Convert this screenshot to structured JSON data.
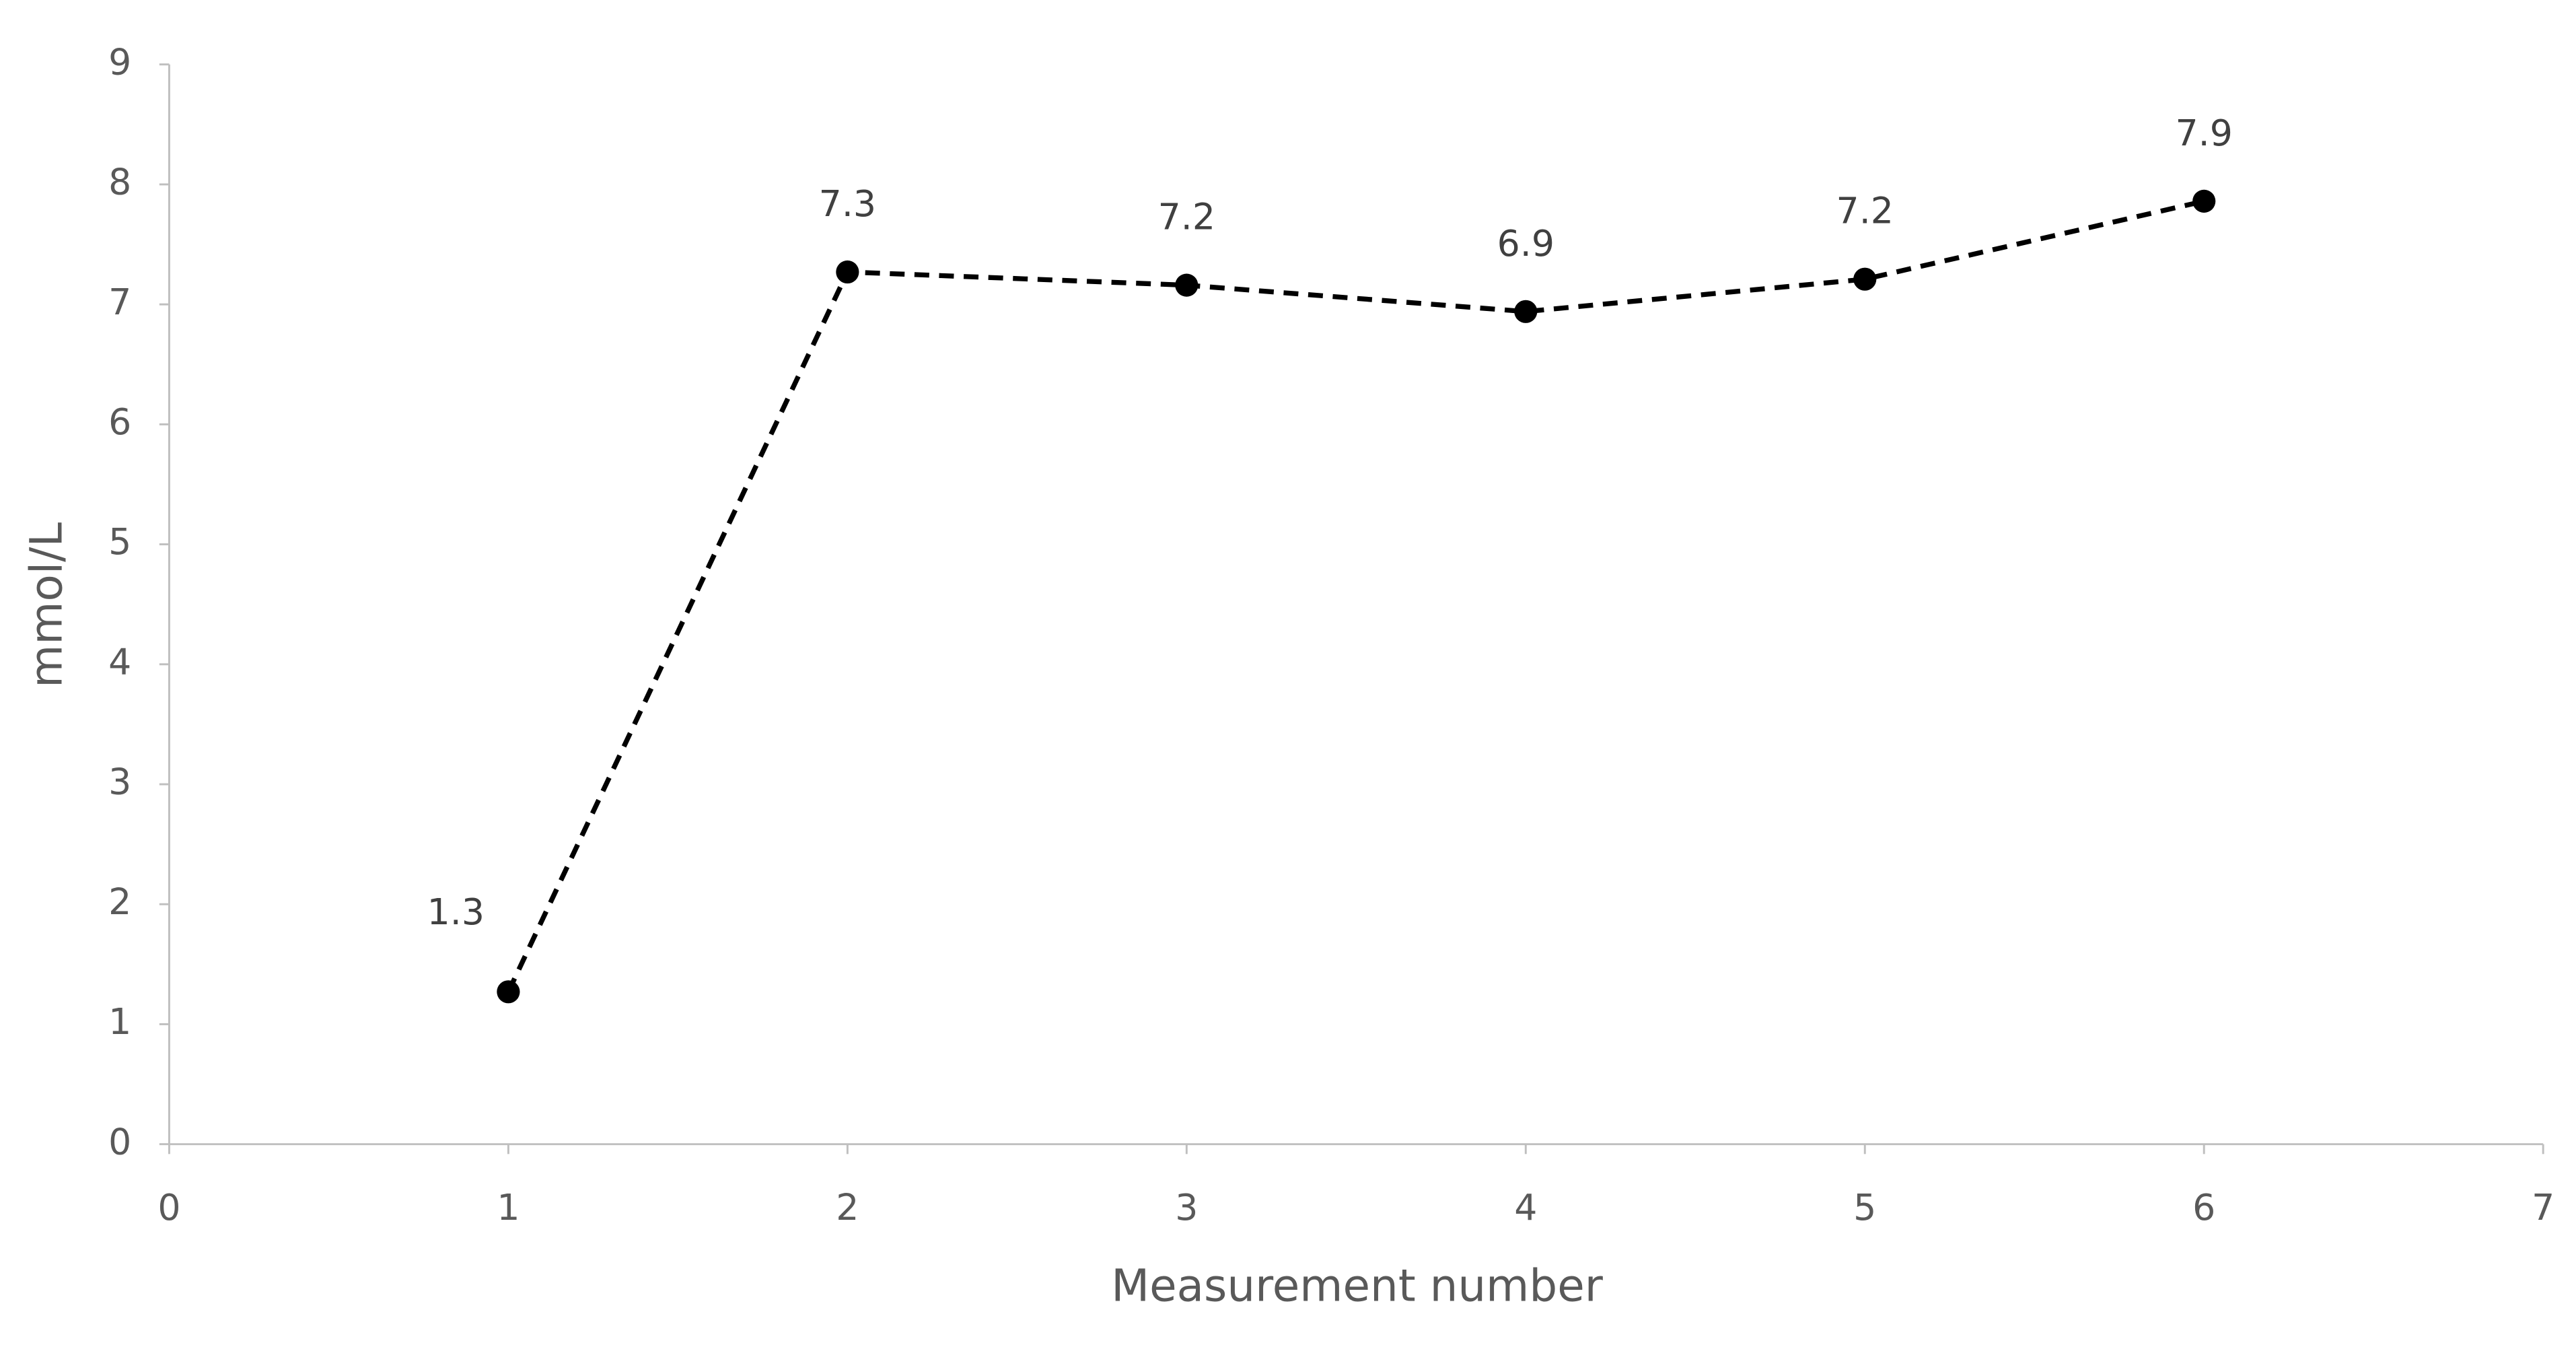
{
  "chart_data": {
    "type": "line",
    "x_label": "Measurement number",
    "y_label": "mmol/L",
    "series": [
      {
        "name": "mmol/L",
        "color": "#000000",
        "x": [
          1,
          2,
          3,
          4,
          5,
          6
        ],
        "values": [
          1.27,
          7.27,
          7.16,
          6.94,
          7.21,
          7.86
        ],
        "value_labels": [
          "1.3",
          "7.3",
          "7.2",
          "6.9",
          "7.2",
          "7.9"
        ]
      }
    ],
    "xlim": [
      0,
      7
    ],
    "xticks": [
      0,
      1,
      2,
      3,
      4,
      5,
      6,
      7
    ],
    "ylim": [
      0,
      9
    ],
    "yticks": [
      0,
      1,
      2,
      3,
      4,
      5,
      6,
      7,
      8,
      9
    ],
    "line_style": "dashed",
    "grid": false
  }
}
